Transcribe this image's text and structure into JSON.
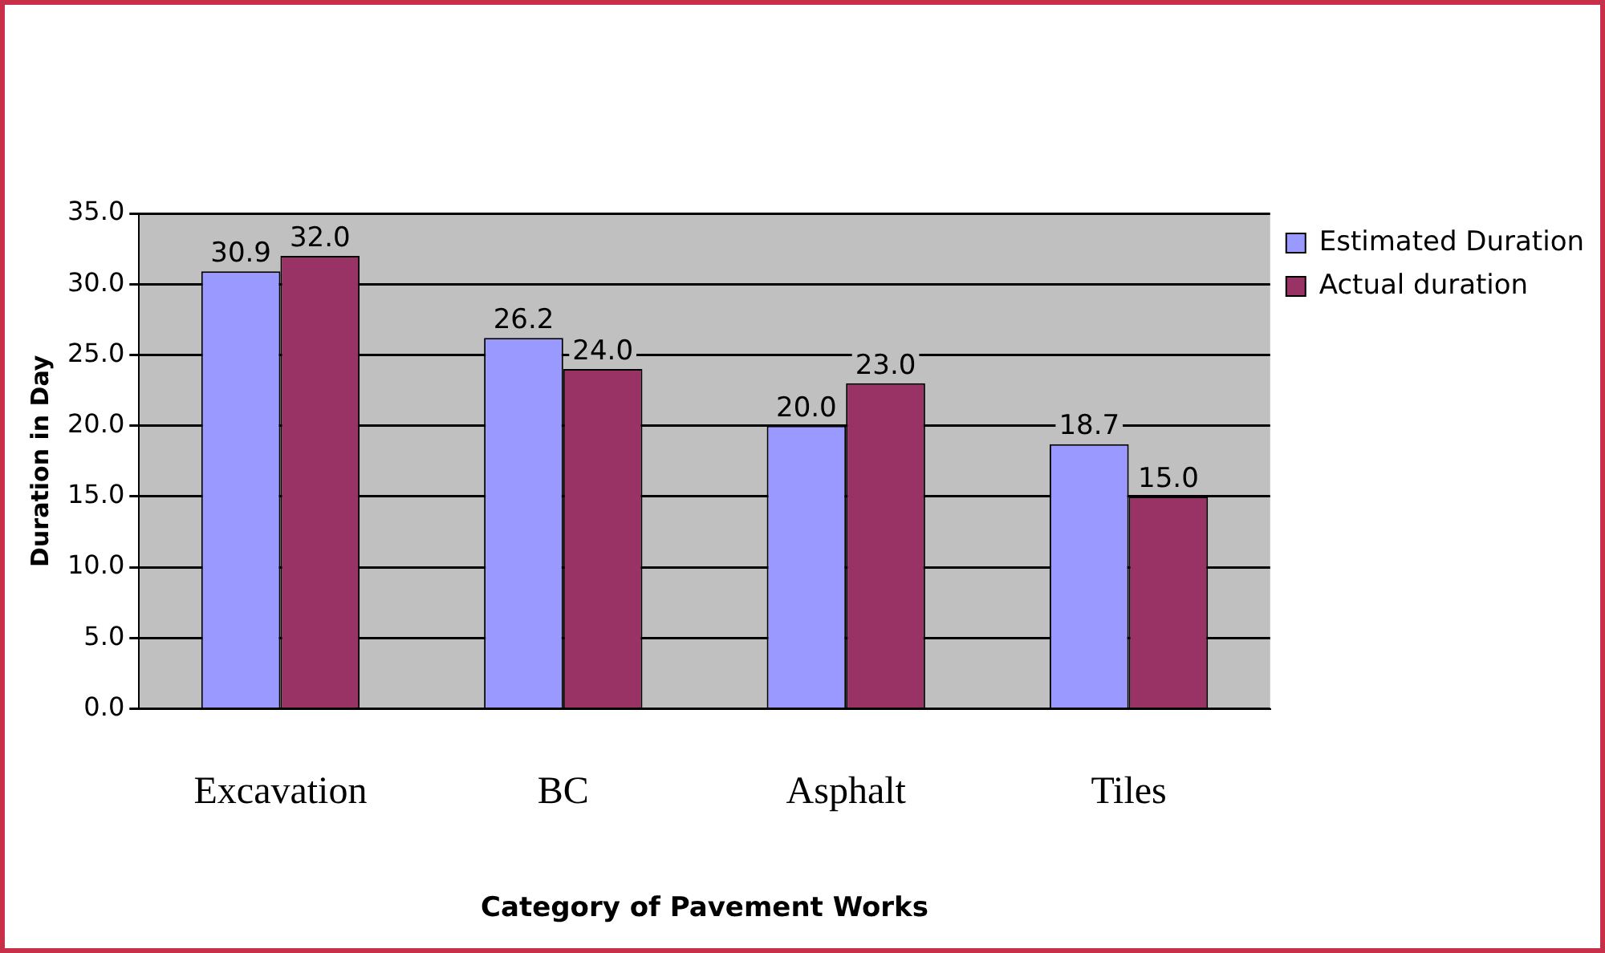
{
  "chart_data": {
    "type": "bar",
    "xlabel": "Category of Pavement Works",
    "ylabel": "Duration in Day",
    "categories": [
      "Excavation",
      "BC",
      "Asphalt",
      "Tiles"
    ],
    "series": [
      {
        "name": "Estimated Duration",
        "color": "#9999ff",
        "values": [
          30.9,
          26.2,
          20.0,
          18.7
        ],
        "value_labels": [
          "30.9",
          "26.2",
          "20.0",
          "18.7"
        ]
      },
      {
        "name": "Actual duration",
        "color": "#993366",
        "values": [
          32.0,
          24.0,
          23.0,
          15.0
        ],
        "value_labels": [
          "32.0",
          "24.0",
          "23.0",
          "15.0"
        ]
      }
    ],
    "ylim": [
      0,
      35
    ],
    "yticks": [
      {
        "value": 0,
        "label": "0.0"
      },
      {
        "value": 5,
        "label": "5.0"
      },
      {
        "value": 10,
        "label": "10.0"
      },
      {
        "value": 15,
        "label": "15.0"
      },
      {
        "value": 20,
        "label": "20.0"
      },
      {
        "value": 25,
        "label": "25.0"
      },
      {
        "value": 30,
        "label": "30.0"
      },
      {
        "value": 35,
        "label": "35.0"
      }
    ],
    "grid": "y",
    "legend": "right"
  }
}
